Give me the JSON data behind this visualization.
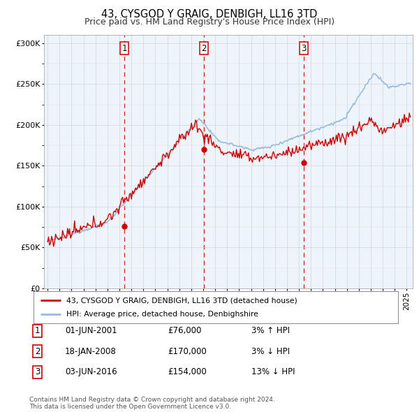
{
  "title": "43, CYSGOD Y GRAIG, DENBIGH, LL16 3TD",
  "subtitle": "Price paid vs. HM Land Registry's House Price Index (HPI)",
  "legend_line1": "43, CYSGOD Y GRAIG, DENBIGH, LL16 3TD (detached house)",
  "legend_line2": "HPI: Average price, detached house, Denbighshire",
  "sale_color": "#cc0000",
  "hpi_color": "#99bbdd",
  "vline_color": "#cc0000",
  "grid_color": "#cccccc",
  "background_color": "#ffffff",
  "chart_bg": "#eef4fb",
  "footnote1": "Contains HM Land Registry data © Crown copyright and database right 2024.",
  "footnote2": "This data is licensed under the Open Government Licence v3.0.",
  "transactions": [
    {
      "num": 1,
      "date": "01-JUN-2001",
      "price": "£76,000",
      "change": "3% ↑ HPI",
      "x_year": 2001.42
    },
    {
      "num": 2,
      "date": "18-JAN-2008",
      "price": "£170,000",
      "change": "3% ↓ HPI",
      "x_year": 2008.05
    },
    {
      "num": 3,
      "date": "03-JUN-2016",
      "price": "£154,000",
      "change": "13% ↓ HPI",
      "x_year": 2016.42
    }
  ],
  "ylim": [
    0,
    310000
  ],
  "xlim_start": 1994.7,
  "xlim_end": 2025.5
}
